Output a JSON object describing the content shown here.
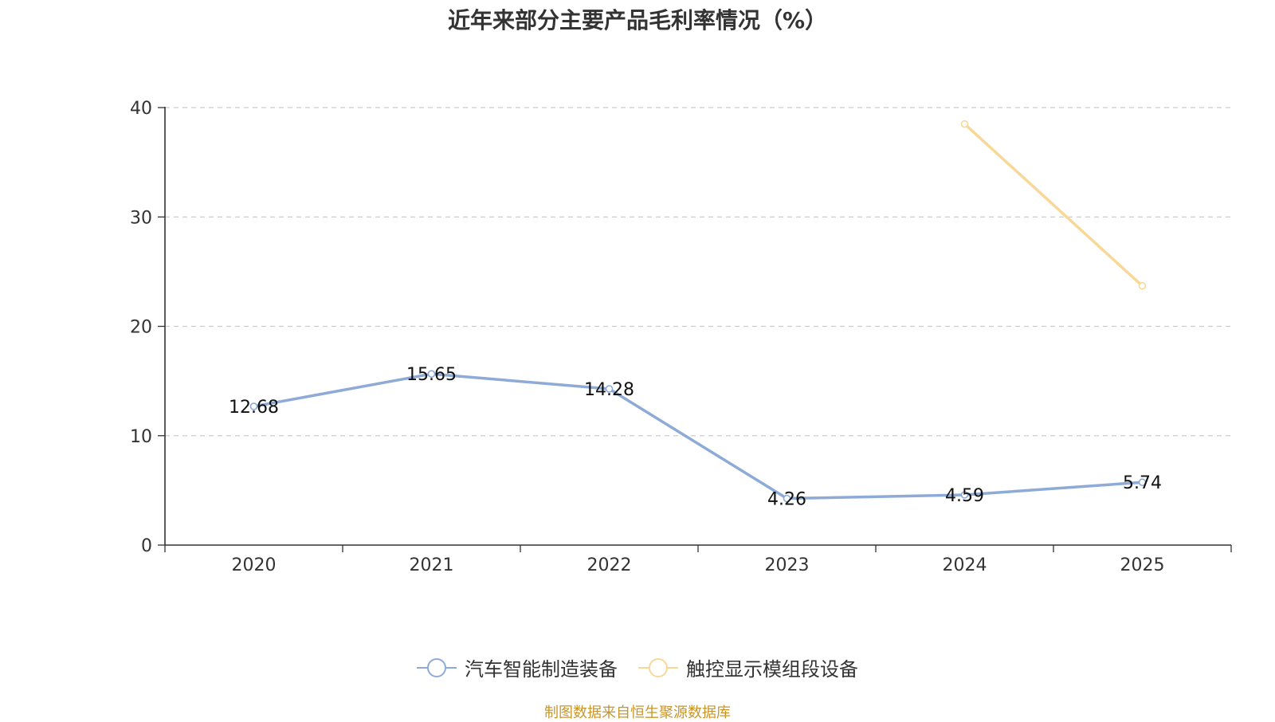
{
  "chart_data": {
    "type": "line",
    "title": "近年来部分主要产品毛利率情况（%）",
    "xlabel": "",
    "ylabel": "",
    "categories": [
      "2020",
      "2021",
      "2022",
      "2023",
      "2024",
      "2025"
    ],
    "ylim": [
      0,
      40
    ],
    "yticks": [
      0,
      10,
      20,
      30,
      40
    ],
    "grid": true,
    "legend_position": "bottom-center",
    "series": [
      {
        "name": "汽车智能制造装备",
        "color": "#8eaad6",
        "values": [
          12.68,
          15.65,
          14.28,
          4.26,
          4.59,
          5.74
        ],
        "labels": [
          "12.68",
          "15.65",
          "14.28",
          "4.26",
          "4.59",
          "5.74"
        ],
        "show_labels": true
      },
      {
        "name": "触控显示模组段设备",
        "color": "#f8d898",
        "values": [
          null,
          null,
          null,
          null,
          38.5,
          23.7
        ],
        "show_labels": false
      }
    ],
    "source": "制图数据来自恒生聚源数据库"
  }
}
